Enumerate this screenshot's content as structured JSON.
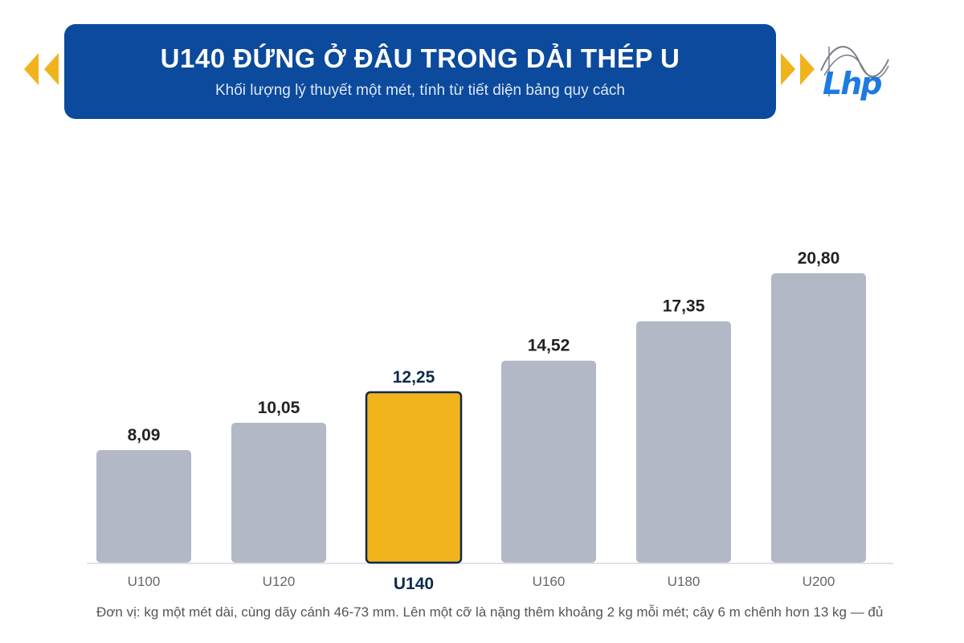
{
  "header": {
    "title": "U140 ĐỨNG Ở ĐÂU TRONG DẢI THÉP U",
    "subtitle": "Khối lượng lý thuyết một mét, tính từ tiết diện bảng quy cách"
  },
  "logo": {
    "text": "Lhp",
    "icon": "lhp-logo-icon"
  },
  "footnote": "Đơn vị: kg một mét dài, cùng dãy cánh 46-73 mm. Lên một cỡ là nặng thêm khoảng 2 kg mỗi mét; cây 6 m chênh hơn 13 kg — đủ",
  "colors": {
    "header_bg": "#0b4a9c",
    "bar": "#b3b8c6",
    "highlight": "#f0b31c",
    "highlight_border": "#0d2a4d",
    "label": "#222222",
    "highlight_label": "#0d2a4d",
    "accent_arrows": "#f0b31c"
  },
  "chart_data": {
    "type": "bar",
    "categories": [
      "U100",
      "U120",
      "U140",
      "U160",
      "U180",
      "U200"
    ],
    "values": [
      8.09,
      10.05,
      12.25,
      14.52,
      17.35,
      20.8
    ],
    "value_labels": [
      "8,09",
      "10,05",
      "12,25",
      "14,52",
      "17,35",
      "20,80"
    ],
    "highlight_index": 2,
    "ylim": [
      0,
      20.8
    ],
    "grid": false,
    "legend": "none",
    "xlabel": "",
    "ylabel": ""
  }
}
